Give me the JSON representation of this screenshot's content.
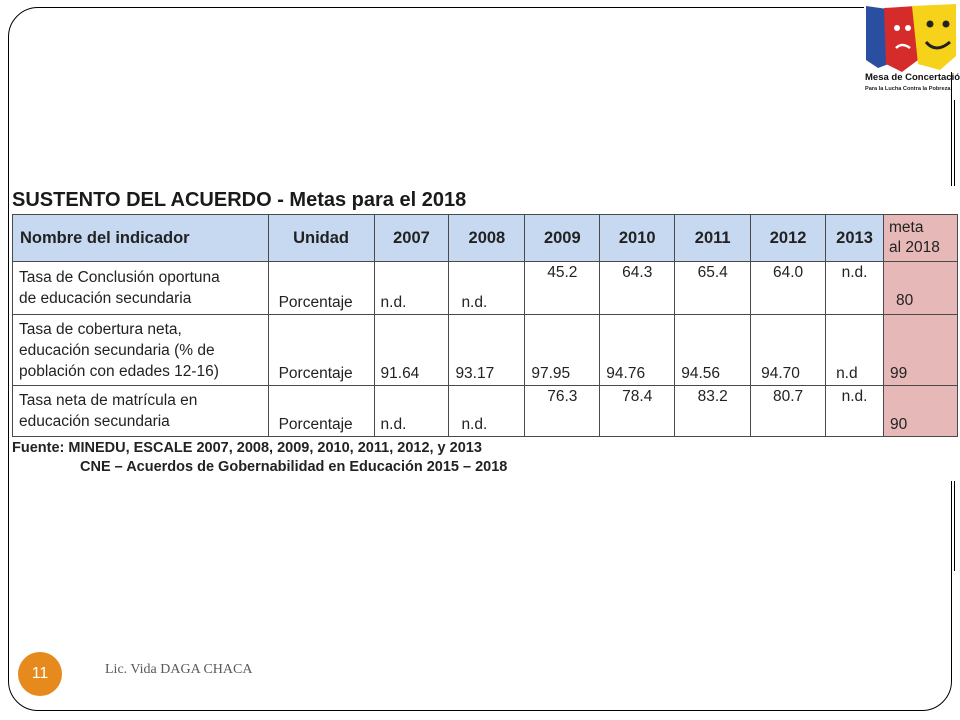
{
  "logo": {
    "name": "Mesa de Concertación",
    "tagline": "Para la Lucha Contra la Pobreza"
  },
  "heading": "SUSTENTO DEL ACUERDO - Metas para el 2018",
  "table": {
    "headers": [
      "Nombre del indicador",
      "Unidad",
      "2007",
      "2008",
      "2009",
      "2010",
      "2011",
      "2012",
      "2013"
    ],
    "meta_header": [
      "meta",
      "al 2018"
    ],
    "rows": [
      {
        "indicator": [
          "Tasa de Conclusión oportuna",
          "de educación secundaria"
        ],
        "unit": "Porcentaje",
        "values": [
          "n.d.",
          "n.d.",
          "45.2",
          "64.3",
          "65.4",
          "64.0",
          "n.d."
        ],
        "meta": "80"
      },
      {
        "indicator": [
          " Tasa de cobertura neta,",
          "educación secundaria (% de",
          "población con edades 12-16)"
        ],
        "unit": "Porcentaje",
        "values": [
          "91.64",
          "93.17",
          "97.95",
          "94.76",
          "94.56",
          "94.70",
          "n.d"
        ],
        "meta": "99"
      },
      {
        "indicator": [
          "Tasa neta de matrícula en",
          "educación secundaria"
        ],
        "unit": "Porcentaje",
        "values": [
          "n.d.",
          "n.d.",
          "76.3",
          "78.4",
          "83.2",
          "80.7",
          "n.d."
        ],
        "meta": "90"
      }
    ]
  },
  "source_line1": "Fuente: MINEDU, ESCALE 2007, 2008, 2009, 2010, 2011, 2012, y 2013",
  "source_line2": "CNE – Acuerdos de Gobernabilidad en Educación 2015 – 2018",
  "footer": {
    "slide_number": "11",
    "author": "Lic. Vida DAGA CHACA"
  },
  "colors": {
    "header_bg": "#c6d9f1",
    "meta_bg": "#e6b9b8",
    "badge": "#e68a1e"
  }
}
